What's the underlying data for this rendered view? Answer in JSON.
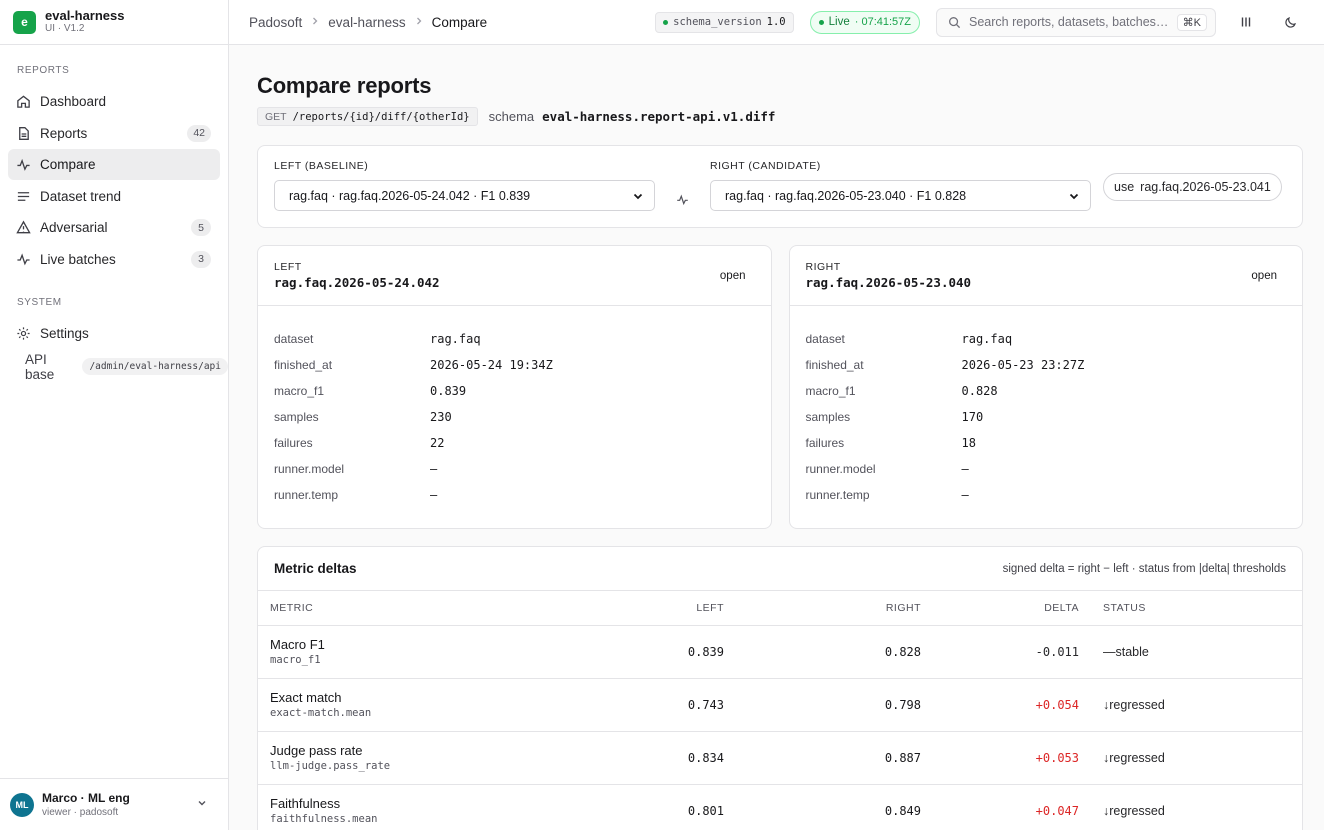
{
  "brand": {
    "logo": "e",
    "name": "eval-harness",
    "version": "UI · V1.2"
  },
  "sidebar": {
    "reports_label": "REPORTS",
    "system_label": "SYSTEM",
    "items": [
      {
        "label": "Dashboard",
        "icon": "home-icon",
        "badge": ""
      },
      {
        "label": "Reports",
        "icon": "file-icon",
        "badge": "42"
      },
      {
        "label": "Compare",
        "icon": "activity-icon",
        "badge": ""
      },
      {
        "label": "Dataset trend",
        "icon": "list-icon",
        "badge": ""
      },
      {
        "label": "Adversarial",
        "icon": "warning-icon",
        "badge": "5"
      },
      {
        "label": "Live batches",
        "icon": "pulse-icon",
        "badge": "3"
      }
    ],
    "settings": "Settings",
    "api_base_label": "API base",
    "api_base_value": "/admin/eval-harness/api"
  },
  "user": {
    "initials": "ML",
    "name": "Marco · ML eng",
    "sub": "viewer · padosoft"
  },
  "breadcrumbs": [
    "Padosoft",
    "eval-harness",
    "Compare"
  ],
  "topbar": {
    "schema_key": "schema_version",
    "schema_val": "1.0",
    "live_label": "Live",
    "live_time": "· 07:41:57Z",
    "search_placeholder": "Search reports, datasets, batches…",
    "shortcut": "⌘K"
  },
  "page": {
    "title": "Compare reports",
    "method": "GET",
    "endpoint": "/reports/{id}/diff/{otherId}",
    "schema_label": "schema",
    "schema_value": "eval-harness.report-api.v1.diff"
  },
  "picker": {
    "left_label": "LEFT (BASELINE)",
    "left_value": "rag.faq · rag.faq.2026-05-24.042 · F1 0.839",
    "right_label": "RIGHT (CANDIDATE)",
    "right_value": "rag.faq · rag.faq.2026-05-23.040 · F1 0.828",
    "use_prefix": "use",
    "use_value": "rag.faq.2026-05-23.041"
  },
  "left": {
    "label": "LEFT",
    "id": "rag.faq.2026-05-24.042",
    "open": "open",
    "rows": [
      {
        "k": "dataset",
        "v": "rag.faq"
      },
      {
        "k": "finished_at",
        "v": "2026-05-24 19:34Z"
      },
      {
        "k": "macro_f1",
        "v": "0.839"
      },
      {
        "k": "samples",
        "v": "230"
      },
      {
        "k": "failures",
        "v": "22"
      },
      {
        "k": "runner.model",
        "v": "—"
      },
      {
        "k": "runner.temp",
        "v": "—"
      }
    ]
  },
  "right": {
    "label": "RIGHT",
    "id": "rag.faq.2026-05-23.040",
    "open": "open",
    "rows": [
      {
        "k": "dataset",
        "v": "rag.faq"
      },
      {
        "k": "finished_at",
        "v": "2026-05-23 23:27Z"
      },
      {
        "k": "macro_f1",
        "v": "0.828"
      },
      {
        "k": "samples",
        "v": "170"
      },
      {
        "k": "failures",
        "v": "18"
      },
      {
        "k": "runner.model",
        "v": "—"
      },
      {
        "k": "runner.temp",
        "v": "—"
      }
    ]
  },
  "deltas": {
    "title": "Metric deltas",
    "note": "signed delta = right − left · status from |delta| thresholds",
    "headers": {
      "metric": "METRIC",
      "left": "LEFT",
      "right": "RIGHT",
      "delta": "DELTA",
      "status": "STATUS"
    },
    "rows": [
      {
        "name": "Macro F1",
        "key": "macro_f1",
        "left": "0.839",
        "right": "0.828",
        "delta": "-0.011",
        "status": "—stable",
        "tone": "neg"
      },
      {
        "name": "Exact match",
        "key": "exact-match.mean",
        "left": "0.743",
        "right": "0.798",
        "delta": "+0.054",
        "status": "↓regressed",
        "tone": "pos"
      },
      {
        "name": "Judge pass rate",
        "key": "llm-judge.pass_rate",
        "left": "0.834",
        "right": "0.887",
        "delta": "+0.053",
        "status": "↓regressed",
        "tone": "pos"
      },
      {
        "name": "Faithfulness",
        "key": "faithfulness.mean",
        "left": "0.801",
        "right": "0.849",
        "delta": "+0.047",
        "status": "↓regressed",
        "tone": "pos"
      }
    ]
  },
  "colors": {
    "accent": "#16a34a",
    "negative_delta": "#dc2626",
    "avatar": "#0e7490"
  }
}
